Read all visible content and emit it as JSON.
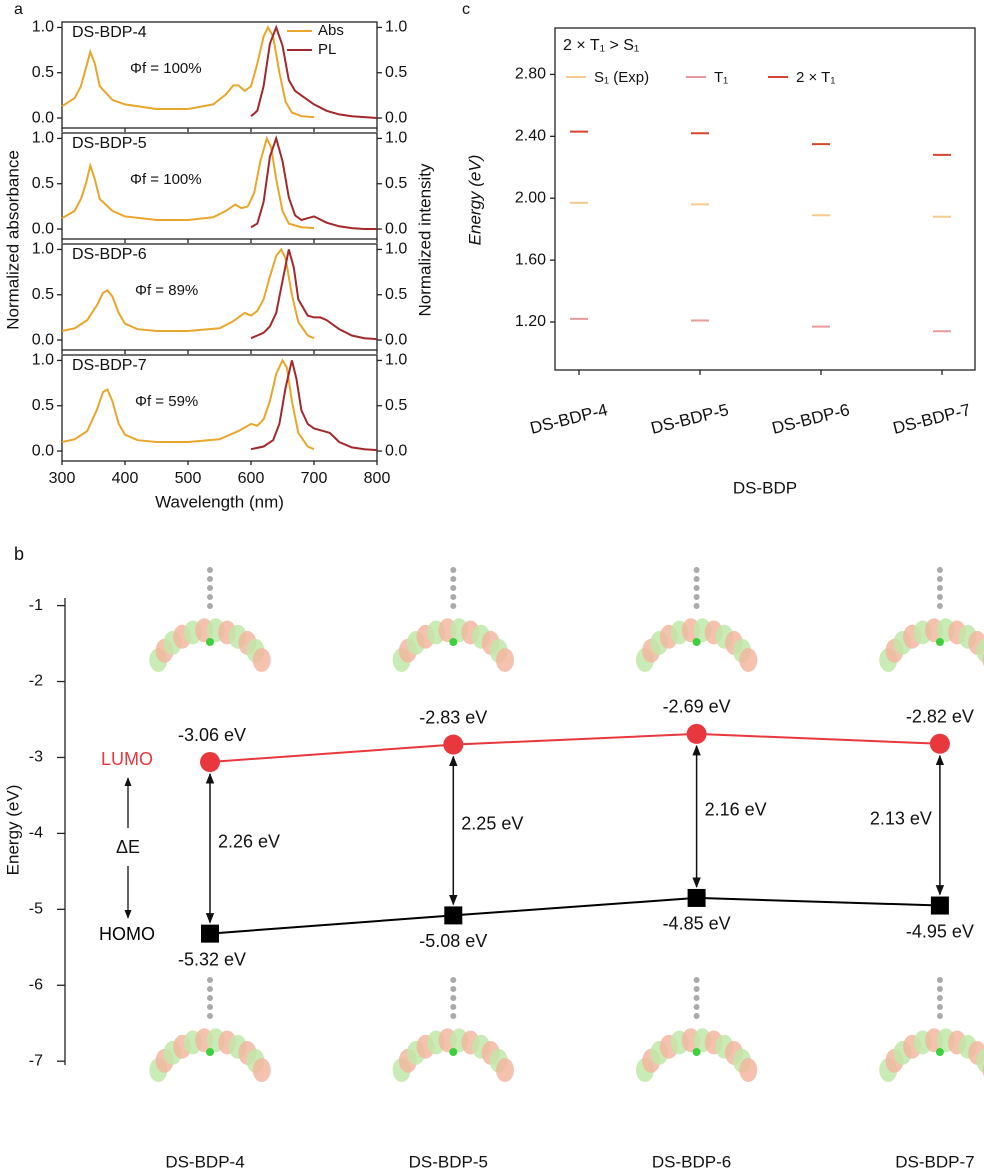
{
  "chart_data": [
    {
      "type": "spectra",
      "label": "a",
      "xlabel": "Wavelength (nm)",
      "ylabel": "Normalized absorbance",
      "y2label": "Normalized intensity",
      "xlim": [
        300,
        800
      ],
      "xticks": [
        300,
        400,
        500,
        600,
        700,
        800
      ],
      "ylim": [
        -0.11,
        1.06
      ],
      "yticks": [
        {
          "value": 0,
          "label": "0.0"
        },
        {
          "value": 0.5,
          "label": "0.5"
        },
        {
          "value": 1,
          "label": "1.0"
        }
      ],
      "y2lim": [
        -0.11,
        1.06
      ],
      "y2ticks": [
        {
          "value": 0,
          "label": "0.0"
        },
        {
          "value": 0.5,
          "label": "0.5"
        },
        {
          "value": 1,
          "label": "1.0"
        }
      ],
      "legend": "upper right",
      "panels": [
        {
          "title": "DS-BDP-4",
          "annotation": "Φf = 100%",
          "series": [
            {
              "name": "Abs",
              "color": "#e9a62b",
              "x": [
                300,
                320,
                330,
                338,
                345,
                352,
                360,
                380,
                400,
                450,
                500,
                540,
                560,
                572,
                580,
                590,
                600,
                610,
                620,
                627,
                635,
                645,
                655,
                665,
                680,
                700
              ],
              "values": [
                0.13,
                0.22,
                0.35,
                0.55,
                0.73,
                0.6,
                0.35,
                0.2,
                0.15,
                0.1,
                0.1,
                0.15,
                0.26,
                0.36,
                0.36,
                0.3,
                0.35,
                0.6,
                0.9,
                1.0,
                0.9,
                0.5,
                0.18,
                0.06,
                0.02,
                0.01
              ]
            },
            {
              "name": "PL",
              "color": "#a3282b",
              "x": [
                600,
                610,
                620,
                630,
                640,
                650,
                660,
                670,
                680,
                700,
                720,
                740,
                760,
                780,
                800
              ],
              "values": [
                0.02,
                0.08,
                0.35,
                0.82,
                1.0,
                0.8,
                0.42,
                0.3,
                0.25,
                0.15,
                0.08,
                0.04,
                0.02,
                0.01,
                0.0
              ]
            }
          ]
        },
        {
          "title": "DS-BDP-5",
          "annotation": "Φf = 100%",
          "series": [
            {
              "color": "#e9a62b",
              "x": [
                300,
                320,
                330,
                338,
                345,
                352,
                360,
                380,
                400,
                450,
                500,
                540,
                560,
                575,
                585,
                595,
                605,
                615,
                625,
                632,
                640,
                650,
                660,
                680,
                700
              ],
              "values": [
                0.12,
                0.2,
                0.33,
                0.5,
                0.7,
                0.55,
                0.33,
                0.2,
                0.14,
                0.1,
                0.1,
                0.13,
                0.2,
                0.27,
                0.23,
                0.25,
                0.4,
                0.75,
                1.0,
                0.9,
                0.55,
                0.2,
                0.06,
                0.02,
                0.01
              ]
            },
            {
              "color": "#a3282b",
              "x": [
                600,
                610,
                620,
                630,
                640,
                650,
                660,
                670,
                680,
                690,
                700,
                720,
                740,
                760,
                780,
                800
              ],
              "values": [
                0.02,
                0.06,
                0.3,
                0.8,
                1.0,
                0.75,
                0.35,
                0.15,
                0.1,
                0.12,
                0.14,
                0.07,
                0.03,
                0.01,
                0.0,
                0.0
              ]
            }
          ]
        },
        {
          "title": "DS-BDP-6",
          "annotation": "Φf = 89%",
          "series": [
            {
              "color": "#e9a62b",
              "x": [
                300,
                320,
                340,
                355,
                365,
                372,
                380,
                390,
                400,
                420,
                450,
                500,
                550,
                570,
                590,
                600,
                610,
                620,
                630,
                640,
                648,
                655,
                665,
                675,
                690,
                700
              ],
              "values": [
                0.1,
                0.13,
                0.22,
                0.38,
                0.52,
                0.55,
                0.48,
                0.3,
                0.18,
                0.12,
                0.1,
                0.1,
                0.13,
                0.2,
                0.3,
                0.27,
                0.32,
                0.45,
                0.7,
                0.93,
                1.0,
                0.9,
                0.5,
                0.2,
                0.05,
                0.02
              ]
            },
            {
              "color": "#a3282b",
              "x": [
                600,
                620,
                630,
                640,
                650,
                660,
                668,
                675,
                690,
                700,
                710,
                720,
                740,
                760,
                780,
                800
              ],
              "values": [
                0.02,
                0.08,
                0.15,
                0.3,
                0.65,
                1.0,
                0.8,
                0.45,
                0.27,
                0.25,
                0.25,
                0.22,
                0.12,
                0.05,
                0.02,
                0.01
              ]
            }
          ]
        },
        {
          "title": "DS-BDP-7",
          "annotation": "Φf = 59%",
          "series": [
            {
              "color": "#e9a62b",
              "x": [
                300,
                320,
                340,
                355,
                365,
                372,
                380,
                390,
                400,
                420,
                450,
                500,
                550,
                580,
                600,
                610,
                620,
                630,
                640,
                650,
                657,
                665,
                675,
                690,
                700
              ],
              "values": [
                0.1,
                0.13,
                0.22,
                0.45,
                0.65,
                0.68,
                0.55,
                0.3,
                0.18,
                0.12,
                0.1,
                0.1,
                0.13,
                0.22,
                0.3,
                0.28,
                0.35,
                0.55,
                0.85,
                1.0,
                0.92,
                0.55,
                0.2,
                0.05,
                0.02
              ]
            },
            {
              "color": "#a3282b",
              "x": [
                600,
                620,
                635,
                645,
                655,
                665,
                672,
                680,
                690,
                700,
                715,
                725,
                740,
                760,
                780,
                800
              ],
              "values": [
                0.02,
                0.05,
                0.12,
                0.3,
                0.7,
                1.0,
                0.8,
                0.45,
                0.3,
                0.25,
                0.22,
                0.2,
                0.1,
                0.04,
                0.02,
                0.01
              ]
            }
          ]
        }
      ]
    },
    {
      "type": "levels",
      "label": "c",
      "annotation": "2 × T₁ > S₁",
      "xlabel": "DS-BDP",
      "ylabel": "Energy (eV)",
      "categories": [
        "DS-BDP-4",
        "DS-BDP-5",
        "DS-BDP-6",
        "DS-BDP-7"
      ],
      "ylim": [
        0.89,
        3.1
      ],
      "yticks": [
        {
          "value": 1.2,
          "label": "1.20"
        },
        {
          "value": 1.6,
          "label": "1.60"
        },
        {
          "value": 2.0,
          "label": "2.00"
        },
        {
          "value": 2.4,
          "label": "2.40"
        },
        {
          "value": 2.8,
          "label": "2.80"
        }
      ],
      "legend": "upper left",
      "series": [
        {
          "name": "S₁ (Exp)",
          "color": "#f6c98c",
          "values": [
            1.97,
            1.96,
            1.89,
            1.88
          ]
        },
        {
          "name": "T₁",
          "color": "#e99a9a",
          "values": [
            1.22,
            1.21,
            1.17,
            1.14
          ]
        },
        {
          "name": "2 × T₁",
          "color": "#d9442c",
          "values": [
            2.43,
            2.42,
            2.35,
            2.28
          ]
        }
      ]
    },
    {
      "type": "energy-diagram",
      "label": "b",
      "ylabel": "Energy (eV)",
      "categories": [
        "DS-BDP-4",
        "DS-BDP-5",
        "DS-BDP-6",
        "DS-BDP-7"
      ],
      "ylim": [
        -7.05,
        -0.9
      ],
      "yticks": [
        -1,
        -2,
        -3,
        -4,
        -5,
        -6,
        -7
      ],
      "series": [
        {
          "name": "LUMO",
          "color": "#e8383d",
          "values": [
            -3.06,
            -2.83,
            -2.69,
            -2.82
          ],
          "value_labels": [
            "-3.06 eV",
            "-2.83 eV",
            "-2.69 eV",
            "-2.82 eV"
          ]
        },
        {
          "name": "HOMO",
          "color": "#000000",
          "values": [
            -5.32,
            -5.08,
            -4.85,
            -4.95
          ],
          "value_labels": [
            "-5.32 eV",
            "-5.08 eV",
            "-4.85 eV",
            "-4.95 eV"
          ]
        }
      ],
      "gap_label": "ΔE",
      "gaps": {
        "values": [
          2.26,
          2.25,
          2.16,
          2.13
        ],
        "value_labels": [
          "2.26 eV",
          "2.25 eV",
          "2.16 eV",
          "2.13 eV"
        ]
      }
    }
  ]
}
